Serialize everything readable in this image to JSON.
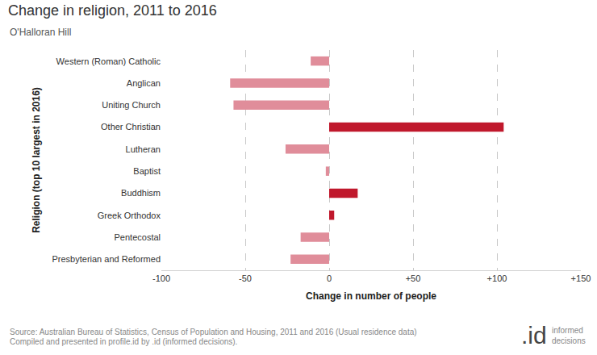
{
  "chart_data": {
    "type": "bar",
    "orientation": "horizontal",
    "title": "Change in religion, 2011 to 2016",
    "subtitle": "O'Halloran Hill",
    "x_label": "Change in number of people",
    "y_label": "Religion (top 10 largest in 2016)",
    "categories": [
      "Western (Roman) Catholic",
      "Anglican",
      "Uniting Church",
      "Other Christian",
      "Lutheran",
      "Baptist",
      "Buddhism",
      "Greek Orthodox",
      "Pentecostal",
      "Presbyterian and Reformed"
    ],
    "values": [
      -11,
      -59,
      -57,
      104,
      -26,
      -2,
      17,
      3,
      -17,
      -23
    ],
    "colors": [
      "#e08d9a",
      "#e08d9a",
      "#e08d9a",
      "#c0182c",
      "#e08d9a",
      "#e08d9a",
      "#c0182c",
      "#c0182c",
      "#e08d9a",
      "#e08d9a"
    ],
    "xlim": [
      -100,
      150
    ],
    "xticks": [
      -100,
      -50,
      0,
      {
        "value": 50,
        "label": "+50"
      },
      {
        "value": 100,
        "label": "+100"
      },
      {
        "value": 150,
        "label": "+150"
      }
    ],
    "grid": true,
    "source": [
      "Source: Australian Bureau of Statistics, Census of Population and Housing, 2011 and 2016 (Usual residence data)",
      "Compiled and presented in profile.id by .id (informed decisions)."
    ],
    "logo": {
      "mark": ".id",
      "text": "informed decisions"
    }
  }
}
